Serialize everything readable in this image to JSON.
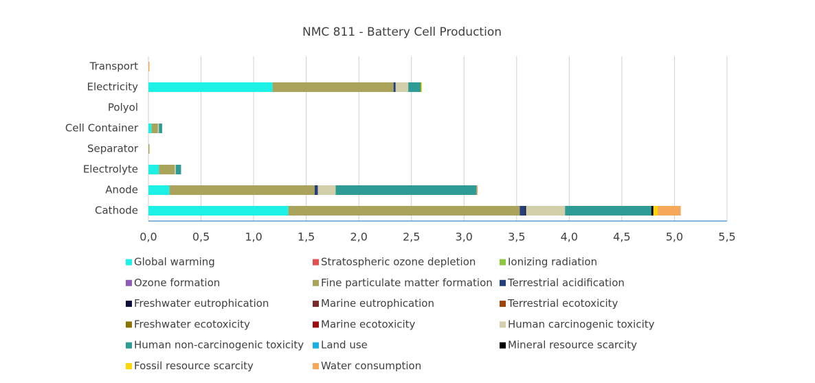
{
  "chart_data": {
    "type": "stacked-barh",
    "title": "NMC 811 - Battery Cell Production",
    "categories": [
      "Cathode",
      "Anode",
      "Electrolyte",
      "Separator",
      "Cell Container",
      "Polyol",
      "Electricity",
      "Transport"
    ],
    "xlim": [
      0,
      5.5
    ],
    "xticks": [
      {
        "value": 0,
        "label": "0,0"
      },
      {
        "value": 0.5,
        "label": "0,5"
      },
      {
        "value": 1,
        "label": "1,0"
      },
      {
        "value": 1.5,
        "label": "1,5"
      },
      {
        "value": 2,
        "label": "2,0"
      },
      {
        "value": 2.5,
        "label": "2,5"
      },
      {
        "value": 3,
        "label": "3,0"
      },
      {
        "value": 3.5,
        "label": "3,5"
      },
      {
        "value": 4,
        "label": "4,0"
      },
      {
        "value": 4.5,
        "label": "4,5"
      },
      {
        "value": 5,
        "label": "5,0"
      },
      {
        "value": 5.5,
        "label": "5,5"
      }
    ],
    "grid": true,
    "series": [
      {
        "name": "Global warming",
        "color": "#1ef0e6",
        "values": [
          1.33,
          0.2,
          0.1,
          0,
          0.03,
          0,
          1.18,
          0
        ]
      },
      {
        "name": "Stratospheric ozone depletion",
        "color": "#e05050",
        "values": [
          0,
          0,
          0,
          0,
          0,
          0,
          0,
          0
        ]
      },
      {
        "name": "Ionizing radiation",
        "color": "#8dc63f",
        "values": [
          0,
          0,
          0,
          0,
          0,
          0,
          0,
          0
        ]
      },
      {
        "name": "Ozone formation",
        "color": "#8e5bb5",
        "values": [
          0,
          0,
          0,
          0,
          0,
          0,
          0,
          0
        ]
      },
      {
        "name": "Fine particulate matter formation",
        "color": "#aaa35c",
        "values": [
          2.2,
          1.38,
          0.15,
          0.01,
          0.06,
          0,
          1.15,
          0
        ]
      },
      {
        "name": "Terrestrial acidification",
        "color": "#243f7a",
        "values": [
          0.05,
          0.03,
          0,
          0,
          0,
          0,
          0.02,
          0
        ]
      },
      {
        "name": "Freshwater eutrophication",
        "color": "#0d0d3a",
        "values": [
          0.01,
          0,
          0,
          0,
          0,
          0,
          0,
          0
        ]
      },
      {
        "name": "Marine eutrophication",
        "color": "#7a2a2a",
        "values": [
          0,
          0,
          0,
          0,
          0,
          0,
          0,
          0
        ]
      },
      {
        "name": "Terrestrial ecotoxicity",
        "color": "#a0450a",
        "values": [
          0,
          0,
          0,
          0,
          0,
          0,
          0,
          0
        ]
      },
      {
        "name": "Freshwater ecotoxicity",
        "color": "#8a7300",
        "values": [
          0,
          0,
          0,
          0,
          0,
          0,
          0,
          0
        ]
      },
      {
        "name": "Marine ecotoxicity",
        "color": "#9e0d0d",
        "values": [
          0,
          0,
          0,
          0,
          0,
          0,
          0,
          0
        ]
      },
      {
        "name": "Human carcinogenic toxicity",
        "color": "#d2cfaa",
        "values": [
          0.37,
          0.17,
          0.01,
          0,
          0.01,
          0,
          0.12,
          0
        ]
      },
      {
        "name": "Human non-carcinogenic toxicity",
        "color": "#2e9b94",
        "values": [
          0.82,
          1.34,
          0.05,
          0,
          0.03,
          0,
          0.12,
          0
        ]
      },
      {
        "name": "Land use",
        "color": "#1ab0e0",
        "values": [
          0,
          0,
          0,
          0,
          0,
          0,
          0,
          0
        ]
      },
      {
        "name": "Mineral resource scarcity",
        "color": "#000000",
        "values": [
          0.02,
          0,
          0,
          0,
          0,
          0,
          0,
          0
        ]
      },
      {
        "name": "Fossil resource scarcity",
        "color": "#ffd700",
        "values": [
          0.04,
          0,
          0,
          0,
          0,
          0,
          0.01,
          0
        ]
      },
      {
        "name": "Water consumption",
        "color": "#f6a85a",
        "values": [
          0.22,
          0.01,
          0,
          0,
          0,
          0,
          0,
          0.01
        ]
      }
    ]
  }
}
